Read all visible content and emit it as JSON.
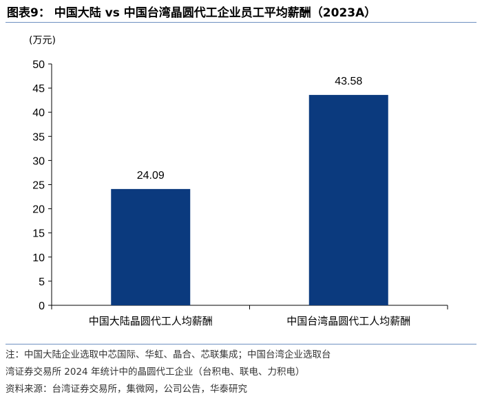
{
  "title": "图表9：  中国大陆  vs  中国台湾晶圆代工企业员工平均薪酬（2023A）",
  "unit_label": "(万元)",
  "chart_data": {
    "type": "bar",
    "title": "图表9：  中国大陆  vs  中国台湾晶圆代工企业员工平均薪酬（2023A）",
    "ylabel": "(万元)",
    "xlabel": "",
    "categories": [
      "中国大陆晶圆代工人均薪酬",
      "中国台湾晶圆代工人均薪酬"
    ],
    "values": [
      24.09,
      43.58
    ],
    "value_labels": [
      "24.09",
      "43.58"
    ],
    "ylim": [
      0,
      50
    ],
    "yticks": [
      0,
      5,
      10,
      15,
      20,
      25,
      30,
      35,
      40,
      45,
      50
    ],
    "bar_color": "#0b3a7e",
    "grid": false
  },
  "notes": [
    "注：中国大陆企业选取中芯国际、华虹、晶合、芯联集成；中国台湾企业选取台",
    "湾证券交易所 2024 年统计中的晶圆代工企业（台积电、联电、力积电）",
    "资料来源：台湾证券交易所，集微网，公司公告，华泰研究"
  ]
}
